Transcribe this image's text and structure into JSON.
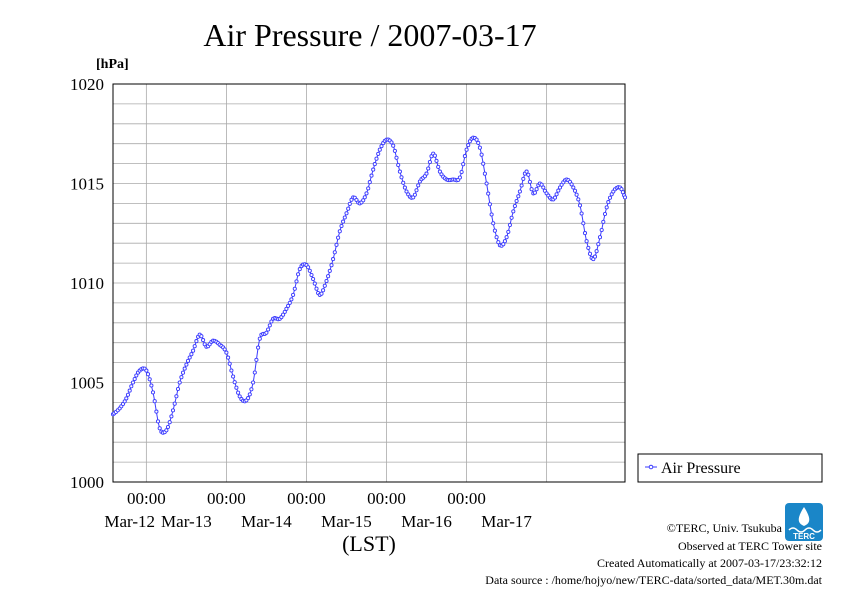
{
  "chart_data": {
    "type": "line",
    "title": "Air Pressure / 2007-03-17",
    "ylabel": "[hPa]",
    "xlabel": "(LST)",
    "ylim": [
      1000,
      1020
    ],
    "yticks": [
      "1000",
      "1005",
      "1010",
      "1015",
      "1020"
    ],
    "x_range_days": [
      "2007-03-11T14:00",
      "2007-03-17T23:30"
    ],
    "x_time_ticks": [
      "00:00",
      "00:00",
      "00:00",
      "00:00",
      "00:00"
    ],
    "x_date_ticks": [
      "Mar-12",
      "Mar-13",
      "Mar-14",
      "Mar-15",
      "Mar-16",
      "Mar-17"
    ],
    "grid": true,
    "legend_position": "right",
    "series": [
      {
        "name": "Air Pressure",
        "color": "#3b3bff",
        "sampling": "30 min",
        "points": [
          [
            "2007-03-11T14:00",
            1003.4
          ],
          [
            "2007-03-11T16:00",
            1003.7
          ],
          [
            "2007-03-11T18:00",
            1004.2
          ],
          [
            "2007-03-11T20:00",
            1005.0
          ],
          [
            "2007-03-11T22:00",
            1005.6
          ],
          [
            "2007-03-12T00:00",
            1005.6
          ],
          [
            "2007-03-12T02:00",
            1004.5
          ],
          [
            "2007-03-12T04:00",
            1002.7
          ],
          [
            "2007-03-12T06:00",
            1002.6
          ],
          [
            "2007-03-12T08:00",
            1003.6
          ],
          [
            "2007-03-12T10:00",
            1005.0
          ],
          [
            "2007-03-12T12:00",
            1005.9
          ],
          [
            "2007-03-12T14:00",
            1006.6
          ],
          [
            "2007-03-12T16:00",
            1007.4
          ],
          [
            "2007-03-12T18:00",
            1006.8
          ],
          [
            "2007-03-12T20:00",
            1007.1
          ],
          [
            "2007-03-12T22:00",
            1006.9
          ],
          [
            "2007-03-13T00:00",
            1006.5
          ],
          [
            "2007-03-13T02:00",
            1005.3
          ],
          [
            "2007-03-13T04:00",
            1004.3
          ],
          [
            "2007-03-13T06:00",
            1004.1
          ],
          [
            "2007-03-13T08:00",
            1005.0
          ],
          [
            "2007-03-13T10:00",
            1007.2
          ],
          [
            "2007-03-13T12:00",
            1007.5
          ],
          [
            "2007-03-13T14:00",
            1008.2
          ],
          [
            "2007-03-13T16:00",
            1008.2
          ],
          [
            "2007-03-13T18:00",
            1008.7
          ],
          [
            "2007-03-13T20:00",
            1009.4
          ],
          [
            "2007-03-13T22:00",
            1010.7
          ],
          [
            "2007-03-14T00:00",
            1010.9
          ],
          [
            "2007-03-14T02:00",
            1010.2
          ],
          [
            "2007-03-14T04:00",
            1009.4
          ],
          [
            "2007-03-14T06:00",
            1010.1
          ],
          [
            "2007-03-14T08:00",
            1011.2
          ],
          [
            "2007-03-14T10:00",
            1012.6
          ],
          [
            "2007-03-14T12:00",
            1013.5
          ],
          [
            "2007-03-14T14:00",
            1014.3
          ],
          [
            "2007-03-14T16:00",
            1014.0
          ],
          [
            "2007-03-14T18:00",
            1014.5
          ],
          [
            "2007-03-14T20:00",
            1015.7
          ],
          [
            "2007-03-14T22:00",
            1016.7
          ],
          [
            "2007-03-15T00:00",
            1017.2
          ],
          [
            "2007-03-15T02:00",
            1016.9
          ],
          [
            "2007-03-15T04:00",
            1015.6
          ],
          [
            "2007-03-15T06:00",
            1014.6
          ],
          [
            "2007-03-15T08:00",
            1014.3
          ],
          [
            "2007-03-15T10:00",
            1015.1
          ],
          [
            "2007-03-15T12:00",
            1015.5
          ],
          [
            "2007-03-15T14:00",
            1016.5
          ],
          [
            "2007-03-15T16:00",
            1015.6
          ],
          [
            "2007-03-15T18:00",
            1015.2
          ],
          [
            "2007-03-15T20:00",
            1015.2
          ],
          [
            "2007-03-15T22:00",
            1015.3
          ],
          [
            "2007-03-16T00:00",
            1016.7
          ],
          [
            "2007-03-16T02:00",
            1017.3
          ],
          [
            "2007-03-16T04:00",
            1016.8
          ],
          [
            "2007-03-16T06:00",
            1015.0
          ],
          [
            "2007-03-16T08:00",
            1013.0
          ],
          [
            "2007-03-16T10:00",
            1011.9
          ],
          [
            "2007-03-16T12:00",
            1012.3
          ],
          [
            "2007-03-16T14:00",
            1013.6
          ],
          [
            "2007-03-16T16:00",
            1014.6
          ],
          [
            "2007-03-16T18:00",
            1015.6
          ],
          [
            "2007-03-16T20:00",
            1014.5
          ],
          [
            "2007-03-16T22:00",
            1015.0
          ],
          [
            "2007-03-17T00:00",
            1014.5
          ],
          [
            "2007-03-17T02:00",
            1014.2
          ],
          [
            "2007-03-17T04:00",
            1014.8
          ],
          [
            "2007-03-17T06:00",
            1015.2
          ],
          [
            "2007-03-17T08:00",
            1014.8
          ],
          [
            "2007-03-17T10:00",
            1013.9
          ],
          [
            "2007-03-17T12:00",
            1012.1
          ],
          [
            "2007-03-17T14:00",
            1011.2
          ],
          [
            "2007-03-17T16:00",
            1012.3
          ],
          [
            "2007-03-17T18:00",
            1013.8
          ],
          [
            "2007-03-17T20:00",
            1014.6
          ],
          [
            "2007-03-17T22:00",
            1014.8
          ],
          [
            "2007-03-17T23:30",
            1014.3
          ]
        ]
      }
    ]
  },
  "footer": {
    "copyright": "©TERC, Univ. Tsukuba",
    "observed": "Observed at TERC Tower site",
    "created": "Created Automatically at 2007-03-17/23:32:12",
    "source": "Data source : /home/hojyo/new/TERC-data/sorted_data/MET.30m.dat",
    "logo_text": "TERC",
    "logo_color": "#1a86c8"
  }
}
